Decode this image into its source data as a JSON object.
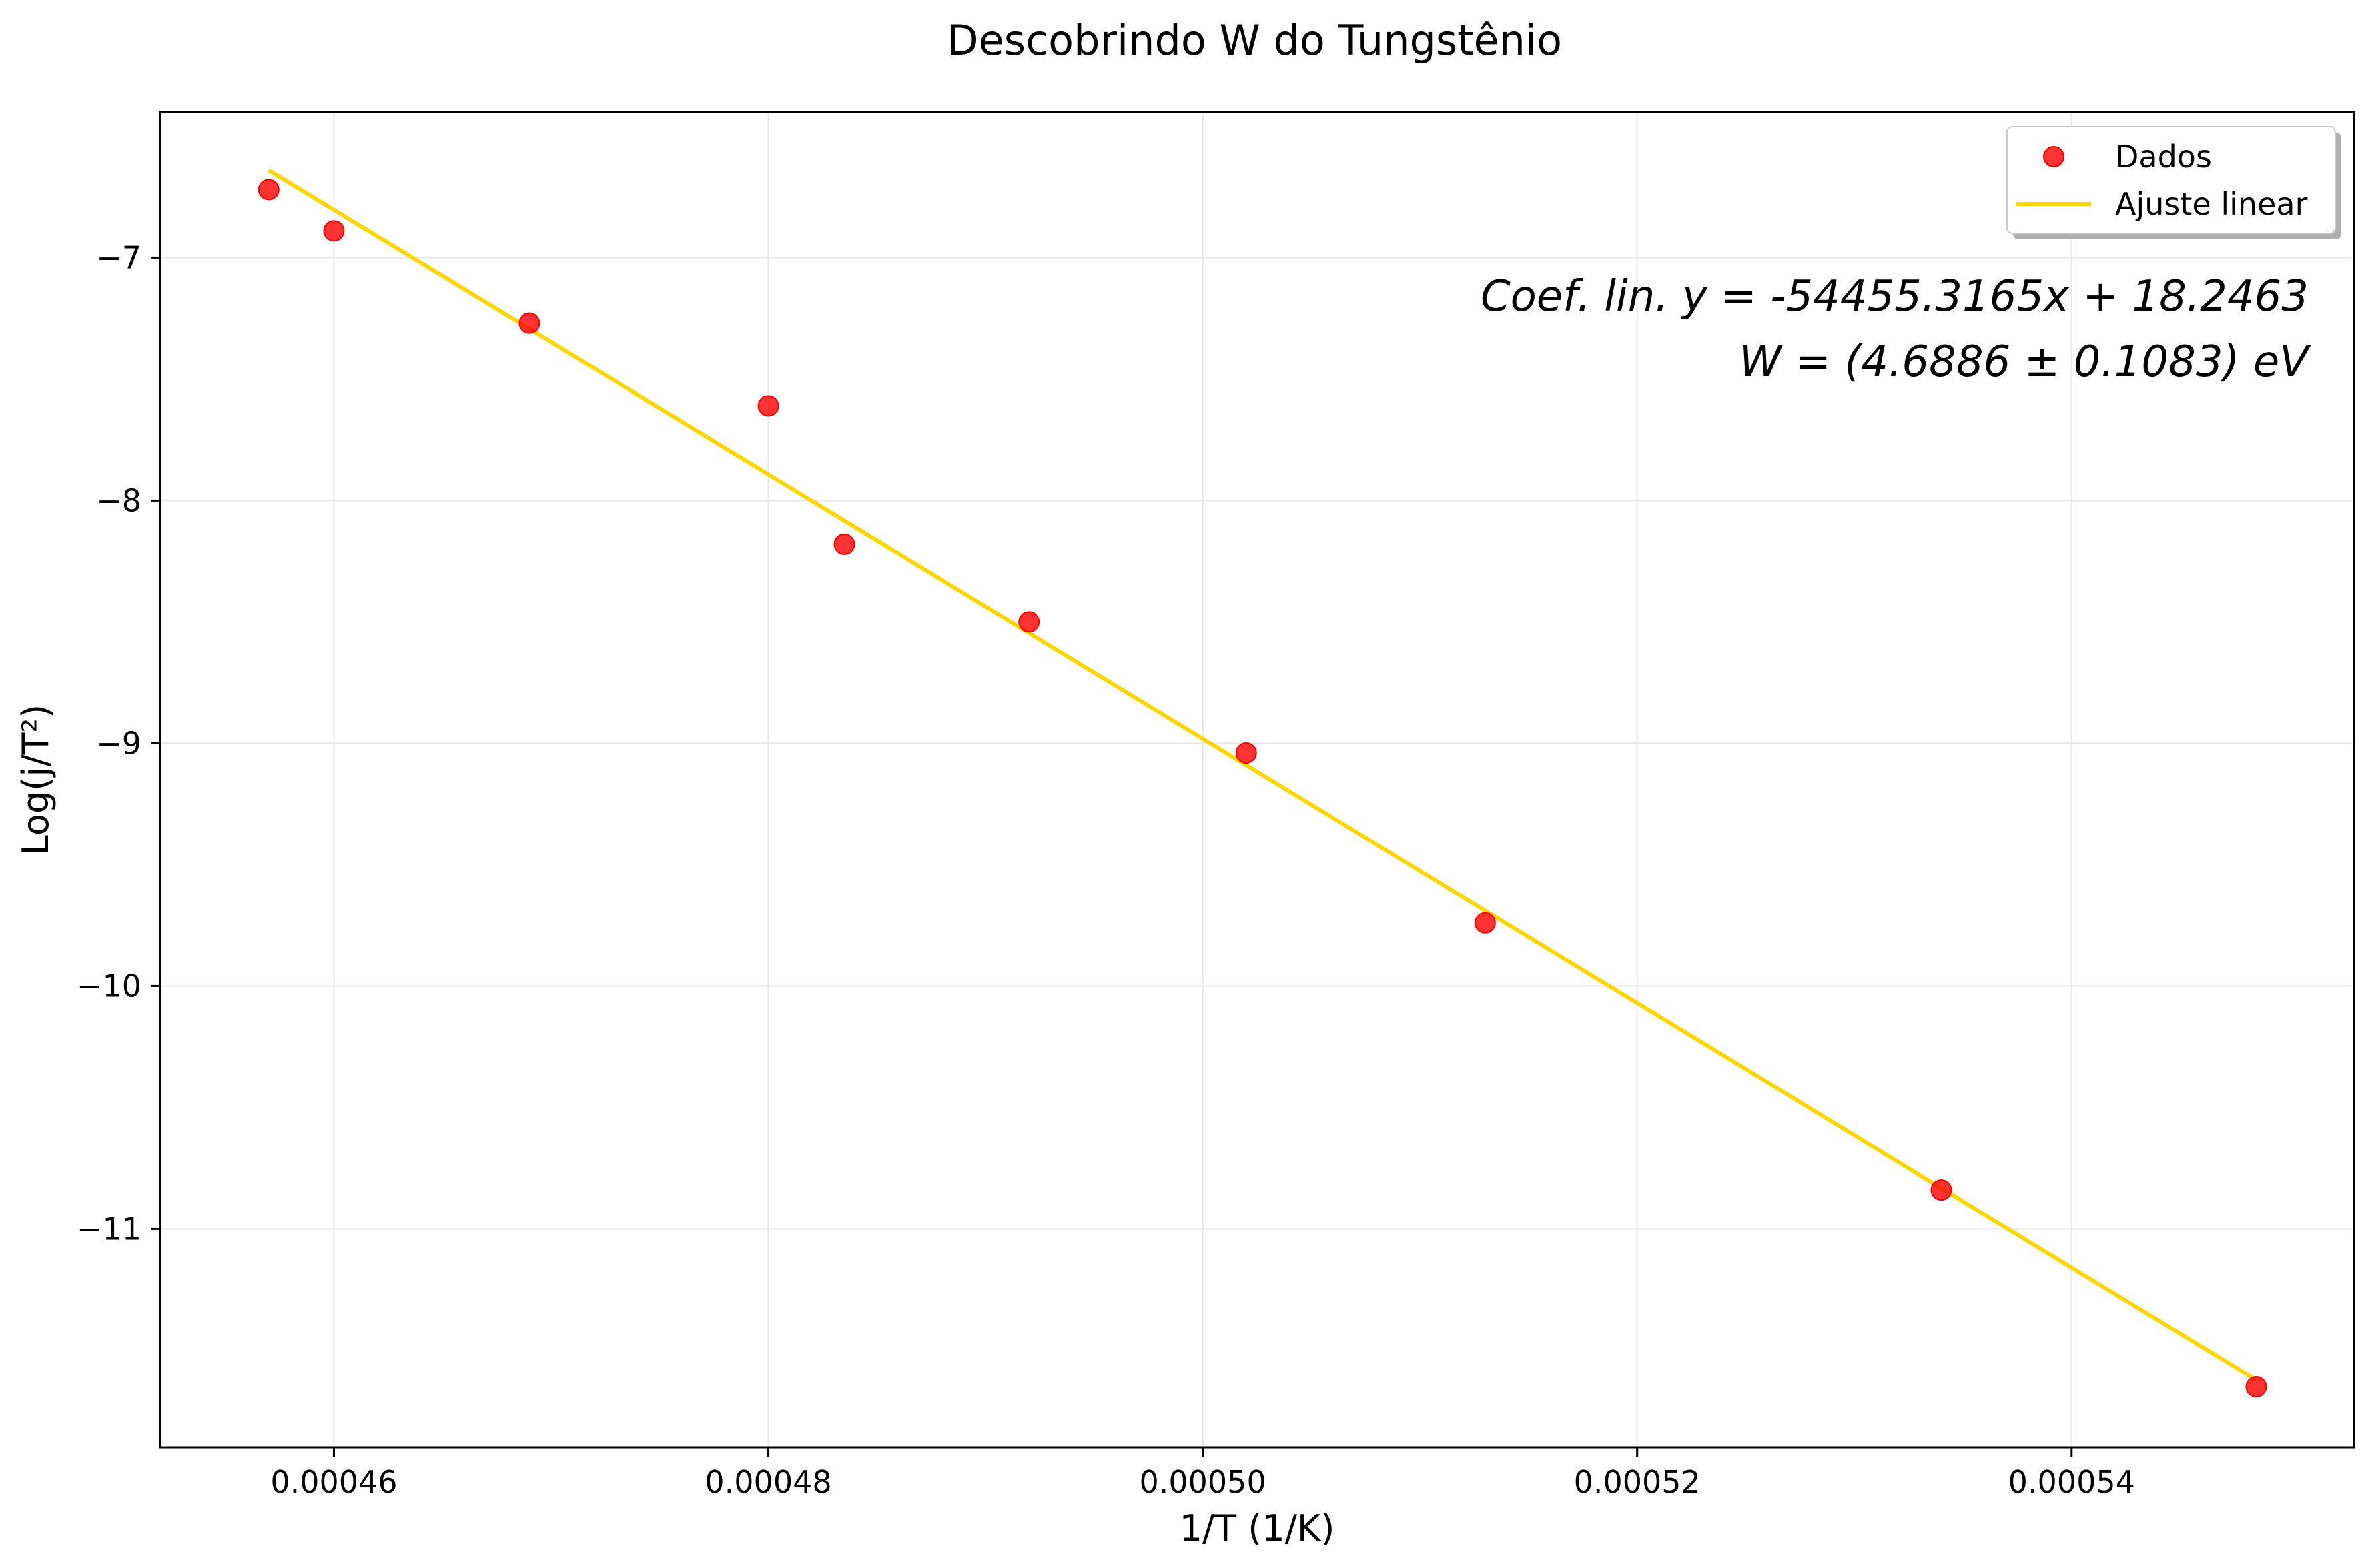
{
  "chart_data": {
    "type": "scatter",
    "title": "Descobrindo W do Tungstênio",
    "xlabel": "1/T (1/K)",
    "ylabel": "Log(j/T²)",
    "xlim": [
      0.000452,
      0.000553
    ],
    "ylim": [
      -11.9,
      -6.4
    ],
    "grid": true,
    "xticks": [
      {
        "value": 0.00046,
        "label": "0.00046"
      },
      {
        "value": 0.00048,
        "label": "0.00048"
      },
      {
        "value": 0.0005,
        "label": "0.00050"
      },
      {
        "value": 0.00052,
        "label": "0.00052"
      },
      {
        "value": 0.00054,
        "label": "0.00054"
      }
    ],
    "yticks": [
      {
        "value": -7,
        "label": "−7"
      },
      {
        "value": -8,
        "label": "−8"
      },
      {
        "value": -9,
        "label": "−9"
      },
      {
        "value": -10,
        "label": "−10"
      },
      {
        "value": -11,
        "label": "−11"
      }
    ],
    "legend_position": "top-right",
    "series": [
      {
        "name": "Dados",
        "kind": "scatter",
        "color": "#ff0000",
        "points": [
          {
            "x": 0.000457,
            "y": -6.72
          },
          {
            "x": 0.00046,
            "y": -6.89
          },
          {
            "x": 0.000469,
            "y": -7.27
          },
          {
            "x": 0.00048,
            "y": -7.61
          },
          {
            "x": 0.0004835,
            "y": -8.18
          },
          {
            "x": 0.000492,
            "y": -8.5
          },
          {
            "x": 0.000502,
            "y": -9.04
          },
          {
            "x": 0.000513,
            "y": -9.74
          },
          {
            "x": 0.000534,
            "y": -10.84
          },
          {
            "x": 0.0005485,
            "y": -11.65
          }
        ]
      },
      {
        "name": "Ajuste linear",
        "kind": "line",
        "color": "#ffd700",
        "slope": -54455.3165,
        "intercept": 18.2463,
        "x_range": [
          0.000457,
          0.0005485
        ]
      }
    ],
    "annotations": [
      "Coef. lin. y = -54455.3165x + 18.2463",
      "W = (4.6886 ± 0.1083) eV"
    ]
  }
}
